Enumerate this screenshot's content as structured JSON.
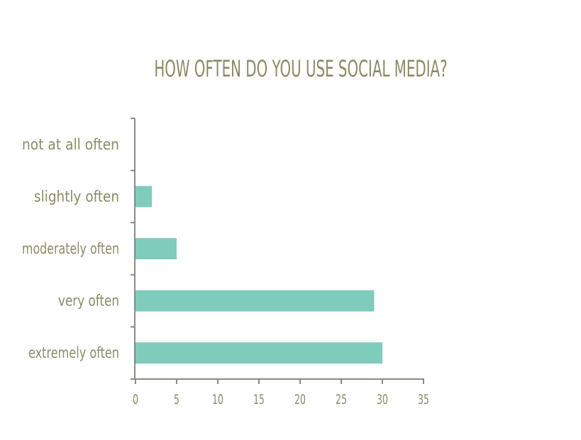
{
  "chart_data": {
    "type": "bar",
    "orientation": "horizontal",
    "title": "HOW OFTEN DO YOU USE SOCIAL MEDIA?",
    "categories": [
      "not at all often",
      "slightly often",
      "moderately often",
      "very often",
      "extremely often"
    ],
    "values": [
      0,
      2,
      5,
      29,
      30
    ],
    "xlim": [
      0,
      35
    ],
    "xticks": [
      "0",
      "5",
      "10",
      "15",
      "20",
      "25",
      "30",
      "35"
    ],
    "grid": false,
    "legend": "none"
  },
  "colors": {
    "bar": "#80ccbc",
    "text": "#8b8a66",
    "axis": "#8a8a82"
  }
}
